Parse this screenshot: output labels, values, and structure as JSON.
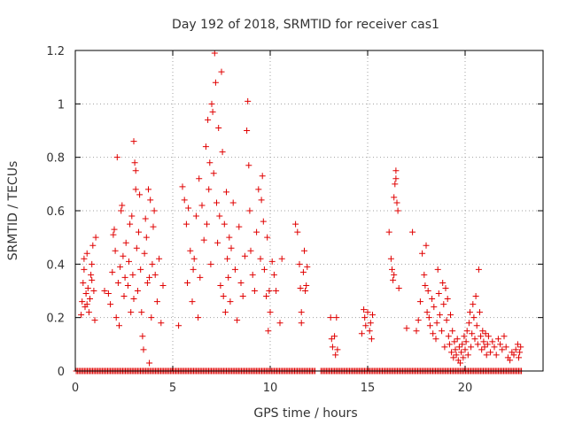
{
  "chart_data": {
    "type": "scatter",
    "title": "Day 192 of 2018, SRMTID for receiver cas1",
    "xlabel": "GPS time / hours",
    "ylabel": "SRMTID / TECUs",
    "xlim": [
      0,
      24
    ],
    "ylim": [
      0,
      1.2
    ],
    "xticks": [
      "0",
      "5",
      "10",
      "15",
      "20"
    ],
    "xtick_values": [
      0,
      5,
      10,
      15,
      20
    ],
    "yticks": [
      "0",
      "0.2",
      "0.4",
      "0.6",
      "0.8",
      "1",
      "1.2"
    ],
    "ytick_values": [
      0,
      0.2,
      0.4,
      0.6,
      0.8,
      1.0,
      1.2
    ],
    "grid": true,
    "marker": "+",
    "color": "#e00000",
    "series": [
      {
        "name": "SRMTID",
        "points": [
          [
            0.3,
            0.21
          ],
          [
            0.35,
            0.26
          ],
          [
            0.4,
            0.33
          ],
          [
            0.45,
            0.38
          ],
          [
            0.5,
            0.24
          ],
          [
            0.55,
            0.29
          ],
          [
            0.6,
            0.44
          ],
          [
            0.65,
            0.31
          ],
          [
            0.7,
            0.22
          ],
          [
            0.75,
            0.27
          ],
          [
            0.8,
            0.36
          ],
          [
            0.85,
            0.4
          ],
          [
            0.9,
            0.47
          ],
          [
            0.95,
            0.3
          ],
          [
            1.0,
            0.19
          ],
          [
            1.05,
            0.5
          ],
          [
            0.45,
            0.42
          ],
          [
            0.6,
            0.25
          ],
          [
            0.85,
            0.34
          ],
          [
            1.5,
            0.3
          ],
          [
            1.7,
            0.29
          ],
          [
            1.8,
            0.25
          ],
          [
            1.9,
            0.37
          ],
          [
            1.95,
            0.51
          ],
          [
            2.0,
            0.53
          ],
          [
            2.05,
            0.45
          ],
          [
            2.1,
            0.2
          ],
          [
            2.15,
            0.8
          ],
          [
            2.2,
            0.33
          ],
          [
            2.25,
            0.17
          ],
          [
            2.3,
            0.39
          ],
          [
            2.35,
            0.6
          ],
          [
            2.4,
            0.62
          ],
          [
            2.45,
            0.43
          ],
          [
            2.5,
            0.28
          ],
          [
            2.55,
            0.35
          ],
          [
            2.6,
            0.48
          ],
          [
            2.7,
            0.32
          ],
          [
            2.75,
            0.41
          ],
          [
            2.8,
            0.55
          ],
          [
            2.85,
            0.22
          ],
          [
            2.9,
            0.58
          ],
          [
            2.95,
            0.36
          ],
          [
            3.0,
            0.27
          ],
          [
            3.0,
            0.86
          ],
          [
            3.05,
            0.78
          ],
          [
            3.1,
            0.75
          ],
          [
            3.1,
            0.68
          ],
          [
            3.15,
            0.46
          ],
          [
            3.2,
            0.3
          ],
          [
            3.25,
            0.52
          ],
          [
            3.3,
            0.66
          ],
          [
            3.35,
            0.38
          ],
          [
            3.4,
            0.22
          ],
          [
            3.45,
            0.13
          ],
          [
            3.5,
            0.08
          ],
          [
            3.55,
            0.44
          ],
          [
            3.6,
            0.57
          ],
          [
            3.65,
            0.5
          ],
          [
            3.7,
            0.33
          ],
          [
            3.75,
            0.68
          ],
          [
            3.8,
            0.03
          ],
          [
            3.8,
            0.35
          ],
          [
            3.85,
            0.64
          ],
          [
            3.9,
            0.2
          ],
          [
            3.95,
            0.4
          ],
          [
            4.0,
            0.54
          ],
          [
            4.05,
            0.6
          ],
          [
            4.1,
            0.36
          ],
          [
            4.2,
            0.26
          ],
          [
            4.3,
            0.42
          ],
          [
            4.4,
            0.18
          ],
          [
            4.5,
            0.32
          ],
          [
            5.3,
            0.17
          ],
          [
            5.5,
            0.69
          ],
          [
            5.6,
            0.64
          ],
          [
            5.7,
            0.55
          ],
          [
            5.75,
            0.33
          ],
          [
            5.8,
            0.61
          ],
          [
            5.9,
            0.45
          ],
          [
            6.0,
            0.26
          ],
          [
            6.05,
            0.38
          ],
          [
            6.1,
            0.42
          ],
          [
            6.2,
            0.58
          ],
          [
            6.3,
            0.2
          ],
          [
            6.35,
            0.72
          ],
          [
            6.4,
            0.35
          ],
          [
            6.5,
            0.62
          ],
          [
            6.6,
            0.49
          ],
          [
            6.7,
            0.84
          ],
          [
            6.75,
            0.55
          ],
          [
            6.8,
            0.94
          ],
          [
            6.85,
            0.68
          ],
          [
            6.9,
            0.78
          ],
          [
            6.95,
            0.4
          ],
          [
            7.0,
            1.0
          ],
          [
            7.05,
            0.97
          ],
          [
            7.1,
            0.74
          ],
          [
            7.15,
            1.19
          ],
          [
            7.2,
            1.08
          ],
          [
            7.25,
            0.63
          ],
          [
            7.3,
            0.48
          ],
          [
            7.35,
            0.91
          ],
          [
            7.4,
            0.58
          ],
          [
            7.45,
            0.32
          ],
          [
            7.5,
            1.12
          ],
          [
            7.55,
            0.82
          ],
          [
            7.6,
            0.28
          ],
          [
            7.65,
            0.55
          ],
          [
            7.7,
            0.22
          ],
          [
            7.75,
            0.67
          ],
          [
            7.8,
            0.42
          ],
          [
            7.85,
            0.35
          ],
          [
            7.9,
            0.5
          ],
          [
            7.95,
            0.26
          ],
          [
            8.0,
            0.46
          ],
          [
            8.1,
            0.63
          ],
          [
            8.2,
            0.38
          ],
          [
            8.3,
            0.19
          ],
          [
            8.4,
            0.54
          ],
          [
            8.5,
            0.33
          ],
          [
            8.6,
            0.28
          ],
          [
            8.7,
            0.43
          ],
          [
            8.8,
            0.9
          ],
          [
            8.85,
            1.01
          ],
          [
            8.9,
            0.77
          ],
          [
            8.95,
            0.6
          ],
          [
            9.0,
            0.45
          ],
          [
            9.1,
            0.36
          ],
          [
            9.2,
            0.3
          ],
          [
            9.3,
            0.52
          ],
          [
            9.4,
            0.68
          ],
          [
            9.5,
            0.42
          ],
          [
            9.55,
            0.64
          ],
          [
            9.6,
            0.73
          ],
          [
            9.65,
            0.56
          ],
          [
            9.7,
            0.38
          ],
          [
            9.8,
            0.28
          ],
          [
            9.85,
            0.5
          ],
          [
            9.9,
            0.15
          ],
          [
            9.95,
            0.3
          ],
          [
            10.0,
            0.22
          ],
          [
            10.1,
            0.41
          ],
          [
            10.2,
            0.36
          ],
          [
            10.3,
            0.3
          ],
          [
            10.5,
            0.18
          ],
          [
            10.6,
            0.42
          ],
          [
            11.3,
            0.55
          ],
          [
            11.4,
            0.52
          ],
          [
            11.5,
            0.4
          ],
          [
            11.55,
            0.31
          ],
          [
            11.6,
            0.22
          ],
          [
            11.7,
            0.37
          ],
          [
            11.75,
            0.45
          ],
          [
            11.8,
            0.3
          ],
          [
            11.85,
            0.32
          ],
          [
            11.9,
            0.39
          ],
          [
            11.6,
            0.18
          ],
          [
            13.1,
            0.2
          ],
          [
            13.15,
            0.12
          ],
          [
            13.2,
            0.09
          ],
          [
            13.3,
            0.13
          ],
          [
            13.35,
            0.06
          ],
          [
            13.4,
            0.2
          ],
          [
            13.45,
            0.08
          ],
          [
            14.7,
            0.14
          ],
          [
            14.8,
            0.23
          ],
          [
            14.85,
            0.2
          ],
          [
            14.9,
            0.17
          ],
          [
            15.0,
            0.22
          ],
          [
            15.1,
            0.15
          ],
          [
            15.15,
            0.18
          ],
          [
            15.2,
            0.12
          ],
          [
            15.25,
            0.21
          ],
          [
            16.1,
            0.52
          ],
          [
            16.2,
            0.42
          ],
          [
            16.25,
            0.38
          ],
          [
            16.3,
            0.34
          ],
          [
            16.35,
            0.65
          ],
          [
            16.4,
            0.7
          ],
          [
            16.45,
            0.75
          ],
          [
            16.5,
            0.63
          ],
          [
            16.55,
            0.6
          ],
          [
            16.6,
            0.31
          ],
          [
            16.35,
            0.36
          ],
          [
            16.45,
            0.72
          ],
          [
            17.0,
            0.16
          ],
          [
            17.3,
            0.52
          ],
          [
            17.5,
            0.15
          ],
          [
            17.6,
            0.19
          ],
          [
            17.7,
            0.26
          ],
          [
            17.8,
            0.44
          ],
          [
            17.9,
            0.36
          ],
          [
            17.95,
            0.32
          ],
          [
            18.0,
            0.47
          ],
          [
            18.05,
            0.22
          ],
          [
            18.1,
            0.3
          ],
          [
            18.15,
            0.2
          ],
          [
            18.2,
            0.17
          ],
          [
            18.3,
            0.27
          ],
          [
            18.35,
            0.14
          ],
          [
            18.4,
            0.24
          ],
          [
            18.5,
            0.12
          ],
          [
            18.55,
            0.18
          ],
          [
            18.6,
            0.38
          ],
          [
            18.65,
            0.29
          ],
          [
            18.7,
            0.21
          ],
          [
            18.8,
            0.15
          ],
          [
            18.85,
            0.33
          ],
          [
            18.9,
            0.25
          ],
          [
            18.95,
            0.09
          ],
          [
            19.0,
            0.31
          ],
          [
            19.05,
            0.19
          ],
          [
            19.1,
            0.27
          ],
          [
            19.15,
            0.13
          ],
          [
            19.2,
            0.1
          ],
          [
            19.25,
            0.21
          ],
          [
            19.3,
            0.07
          ],
          [
            19.35,
            0.15
          ],
          [
            19.4,
            0.05
          ],
          [
            19.45,
            0.11
          ],
          [
            19.5,
            0.08
          ],
          [
            19.55,
            0.06
          ],
          [
            19.6,
            0.12
          ],
          [
            19.65,
            0.04
          ],
          [
            19.7,
            0.09
          ],
          [
            19.75,
            0.03
          ],
          [
            19.8,
            0.07
          ],
          [
            19.85,
            0.1
          ],
          [
            19.9,
            0.05
          ],
          [
            19.95,
            0.13
          ],
          [
            20.0,
            0.08
          ],
          [
            20.05,
            0.11
          ],
          [
            20.1,
            0.15
          ],
          [
            20.15,
            0.06
          ],
          [
            20.2,
            0.18
          ],
          [
            20.25,
            0.22
          ],
          [
            20.3,
            0.09
          ],
          [
            20.35,
            0.14
          ],
          [
            20.4,
            0.25
          ],
          [
            20.45,
            0.2
          ],
          [
            20.5,
            0.12
          ],
          [
            20.55,
            0.28
          ],
          [
            20.6,
            0.17
          ],
          [
            20.65,
            0.1
          ],
          [
            20.7,
            0.38
          ],
          [
            20.75,
            0.22
          ],
          [
            20.8,
            0.13
          ],
          [
            20.85,
            0.08
          ],
          [
            20.9,
            0.15
          ],
          [
            20.95,
            0.11
          ],
          [
            21.0,
            0.09
          ],
          [
            21.05,
            0.14
          ],
          [
            21.1,
            0.06
          ],
          [
            21.15,
            0.1
          ],
          [
            21.2,
            0.13
          ],
          [
            21.3,
            0.07
          ],
          [
            21.4,
            0.11
          ],
          [
            21.5,
            0.09
          ],
          [
            21.6,
            0.06
          ],
          [
            21.7,
            0.12
          ],
          [
            21.8,
            0.1
          ],
          [
            21.9,
            0.08
          ],
          [
            22.0,
            0.13
          ],
          [
            22.1,
            0.09
          ],
          [
            22.2,
            0.05
          ],
          [
            22.3,
            0.04
          ],
          [
            22.4,
            0.07
          ],
          [
            22.5,
            0.06
          ],
          [
            22.6,
            0.08
          ],
          [
            22.7,
            0.1
          ],
          [
            22.75,
            0.05
          ],
          [
            22.8,
            0.07
          ],
          [
            22.85,
            0.09
          ]
        ]
      }
    ],
    "zero_segments": [
      [
        0.05,
        12.3
      ],
      [
        12.6,
        22.9
      ]
    ],
    "zero_step": 0.07
  }
}
